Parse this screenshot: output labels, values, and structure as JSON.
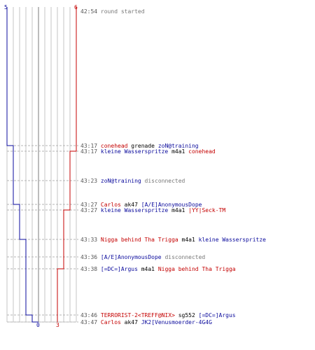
{
  "log": {
    "start_time": "42:54",
    "start_text": "round started",
    "team_counts": {
      "ct_start": "5",
      "t_start": "6",
      "ct_end": "0",
      "t_end": "3"
    },
    "colors": {
      "ct": "#0a0a9c",
      "t": "#c40000",
      "grid": "#c4c4c4",
      "grid_dark": "#7a7a7a",
      "dash": "#b5b5b5",
      "time": "#555555",
      "info": "#777777"
    },
    "events": [
      {
        "time": "43:17",
        "kind": "kill",
        "killer": "conehead",
        "killer_team": "t",
        "weapon": "grenade",
        "victim": "zoN@training",
        "victim_team": "ct",
        "ct_alive": 4,
        "t_alive": 6
      },
      {
        "time": "43:17",
        "kind": "kill",
        "killer": "kleine Wasserspritze",
        "killer_team": "ct",
        "weapon": "m4a1",
        "victim": "conehead",
        "victim_team": "t",
        "ct_alive": 4,
        "t_alive": 5
      },
      {
        "time": "43:23",
        "kind": "info",
        "player": "zoN@training",
        "player_team": "ct",
        "text": "disconnected",
        "ct_alive": 4,
        "t_alive": 5
      },
      {
        "time": "43:27",
        "kind": "kill",
        "killer": "Carlos",
        "killer_team": "t",
        "weapon": "ak47",
        "victim": "[A/E]AnonymousDope",
        "victim_team": "ct",
        "ct_alive": 3,
        "t_alive": 5
      },
      {
        "time": "43:27",
        "kind": "kill",
        "killer": "kleine Wasserspritze",
        "killer_team": "ct",
        "weapon": "m4a1",
        "victim": "|YY|Seck-TM",
        "victim_team": "t",
        "ct_alive": 3,
        "t_alive": 4
      },
      {
        "time": "43:33",
        "kind": "kill",
        "killer": "Nigga behind Tha Trigga",
        "killer_team": "t",
        "weapon": "m4a1",
        "victim": "kleine Wasserspritze",
        "victim_team": "ct",
        "ct_alive": 2,
        "t_alive": 4
      },
      {
        "time": "43:36",
        "kind": "info",
        "player": "[A/E]AnonymousDope",
        "player_team": "ct",
        "text": "disconnected",
        "ct_alive": 2,
        "t_alive": 4
      },
      {
        "time": "43:38",
        "kind": "kill",
        "killer": "[=DC=]Argus",
        "killer_team": "ct",
        "weapon": "m4a1",
        "victim": "Nigga behind Tha Trigga",
        "victim_team": "t",
        "ct_alive": 2,
        "t_alive": 3
      },
      {
        "time": "43:46",
        "kind": "kill",
        "killer": "TERRORIST-2<TREFF@NIX>",
        "killer_team": "t",
        "weapon": "sg552",
        "victim": "[=DC=]Argus",
        "victim_team": "ct",
        "ct_alive": 1,
        "t_alive": 3
      },
      {
        "time": "43:47",
        "kind": "kill",
        "killer": "Carlos",
        "killer_team": "t",
        "weapon": "ak47",
        "victim": "JK2[Venusmoerder-4G4G",
        "victim_team": "ct",
        "ct_alive": 0,
        "t_alive": 3
      }
    ]
  }
}
